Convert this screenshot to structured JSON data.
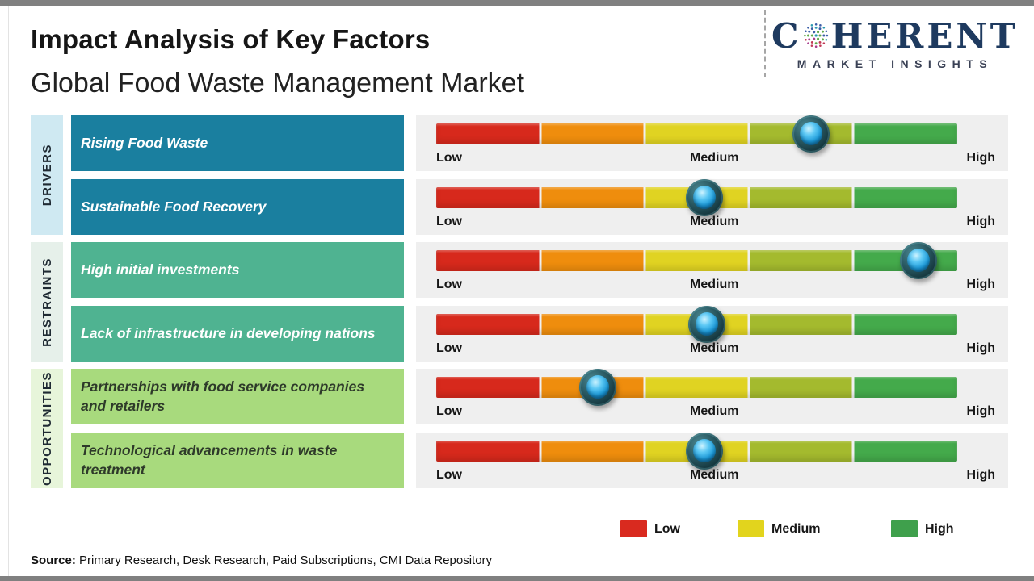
{
  "header": {
    "title": "Impact Analysis of Key Factors",
    "subtitle": "Global Food Waste Management Market"
  },
  "brand": {
    "name_prefix": "C",
    "name_suffix": "HERENT",
    "tagline": "MARKET INSIGHTS",
    "navy": "#1e3a5f"
  },
  "scale": {
    "segment_colors": [
      "#d7291c",
      "#ef8d0d",
      "#e0d322",
      "#a4ba2e",
      "#44aa4b"
    ],
    "separator_color": "#f0f0f0",
    "tick_labels": [
      "Low",
      "Medium",
      "High"
    ]
  },
  "sections": [
    {
      "label": "DRIVERS",
      "box_color": "#1a7f9f",
      "column_color": "#cfe9f2",
      "rows": [
        {
          "factor": "Rising Food Waste",
          "impact_percent": 72
        },
        {
          "factor": "Sustainable Food Recovery",
          "impact_percent": 51.5
        }
      ]
    },
    {
      "label": "RESTRAINTS",
      "box_color": "#4fb391",
      "column_color": "#e6f0ea",
      "rows": [
        {
          "factor": "High initial investments",
          "impact_percent": 92.5
        },
        {
          "factor": "Lack of infrastructure in developing nations",
          "impact_percent": 52
        }
      ]
    },
    {
      "label": "OPPORTUNITIES",
      "box_color": "#a8da7d",
      "column_color": "#e7f5da",
      "rows": [
        {
          "factor": "Partnerships with food service companies and retailers",
          "impact_percent": 31
        },
        {
          "factor": "Technological advancements in waste treatment",
          "impact_percent": 51.5
        }
      ]
    }
  ],
  "legend": {
    "items": [
      {
        "label": "Low",
        "color": "#d92a1f"
      },
      {
        "label": "Medium",
        "color": "#e2d41d"
      },
      {
        "label": "High",
        "color": "#3fa04c"
      }
    ]
  },
  "source": {
    "prefix": "Source:",
    "text": " Primary Research, Desk Research, Paid Subscriptions, CMI Data Repository"
  },
  "chart_data": {
    "type": "bar",
    "title": "Impact Analysis of Key Factors",
    "subtitle": "Global Food Waste Management Market",
    "categories": [
      "Rising Food Waste",
      "Sustainable Food Recovery",
      "High initial investments",
      "Lack of infrastructure in developing nations",
      "Partnerships with food service companies and retailers",
      "Technological advancements in waste treatment"
    ],
    "groups": [
      "Drivers",
      "Drivers",
      "Restraints",
      "Restraints",
      "Opportunities",
      "Opportunities"
    ],
    "values_percent_of_scale": [
      72,
      51.5,
      92.5,
      52,
      31,
      51.5
    ],
    "impact_ratings": [
      "Medium-High",
      "Medium",
      "High",
      "Medium",
      "Low-Medium",
      "Medium"
    ],
    "scale_labels": [
      "Low",
      "Medium",
      "High"
    ],
    "xlim": [
      0,
      100
    ],
    "legend_entries": [
      "Low",
      "Medium",
      "High"
    ],
    "legend_position": "bottom-right",
    "grid": false
  }
}
